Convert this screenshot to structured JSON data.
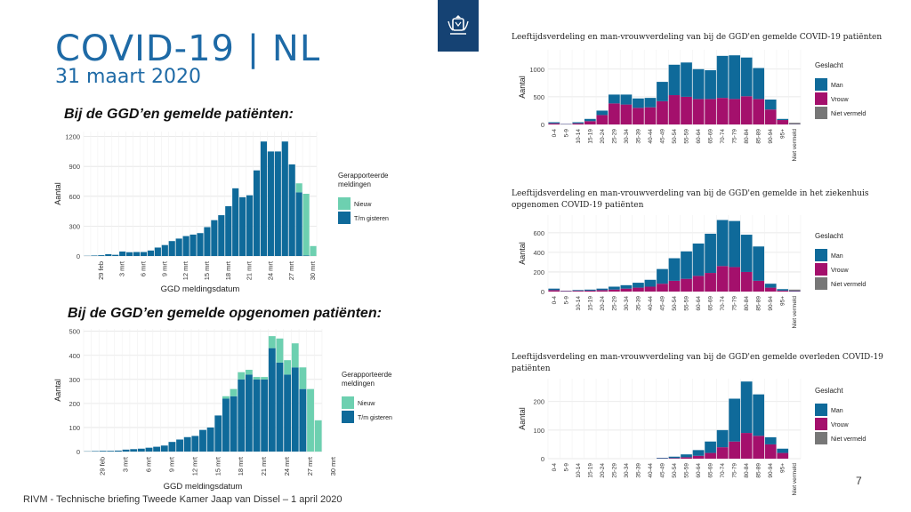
{
  "slide": {
    "title": "COVID-19 | NL",
    "date": "31 maart 2020",
    "section1": "Bij de GGD’en gemelde patiënten:",
    "section2": "Bij de GGD’en gemelde opgenomen patiënten:",
    "footer": "RIVM - Technische briefing Tweede Kamer Jaap van Dissel – 1 april 2020",
    "page_number": "7",
    "logo_icon": "coat-of-arms-icon"
  },
  "chart_data": [
    {
      "type": "bar",
      "stacked": true,
      "title": "",
      "xlabel": "GGD meldingsdatum",
      "ylabel": "Aantal",
      "ylim": [
        0,
        1250
      ],
      "yticks": [
        0,
        300,
        600,
        900,
        1200
      ],
      "x_tick_labels": [
        "29 feb",
        "3 mrt",
        "6 mrt",
        "9 mrt",
        "12 mrt",
        "15 mrt",
        "18 mrt",
        "21 mrt",
        "24 mrt",
        "27 mrt",
        "30 mrt"
      ],
      "x_tick_index": [
        3,
        6,
        9,
        12,
        15,
        18,
        21,
        24,
        27,
        30,
        33
      ],
      "legend_title": "Gerapporteerde meldingen",
      "legend_position": "right",
      "series": [
        {
          "name": "T/m gisteren",
          "color": "#0f6a9a",
          "values": [
            2,
            5,
            8,
            18,
            12,
            45,
            38,
            40,
            40,
            55,
            85,
            110,
            150,
            175,
            200,
            215,
            230,
            290,
            360,
            410,
            500,
            680,
            590,
            610,
            860,
            1150,
            1050,
            1050,
            1150,
            920,
            640,
            5,
            0
          ]
        },
        {
          "name": "Nieuw",
          "color": "#6dd0b0",
          "values": [
            0,
            0,
            0,
            0,
            0,
            0,
            0,
            0,
            0,
            0,
            0,
            0,
            0,
            0,
            0,
            0,
            0,
            0,
            0,
            0,
            0,
            0,
            0,
            0,
            0,
            0,
            0,
            0,
            0,
            0,
            90,
            620,
            100
          ]
        }
      ]
    },
    {
      "type": "bar",
      "stacked": true,
      "title": "",
      "xlabel": "GGD meldingsdatum",
      "ylabel": "Aantal",
      "ylim": [
        0,
        510
      ],
      "yticks": [
        0,
        100,
        200,
        300,
        400,
        500
      ],
      "x_tick_labels": [
        "29 feb",
        "3 mrt",
        "6 mrt",
        "9 mrt",
        "12 mrt",
        "15 mrt",
        "18 mrt",
        "21 mrt",
        "24 mrt",
        "27 mrt",
        "30 mrt"
      ],
      "x_tick_index": [
        3,
        6,
        9,
        12,
        15,
        18,
        21,
        24,
        27,
        30,
        33
      ],
      "legend_title": "Gerapporteerde meldingen",
      "legend_position": "right",
      "series": [
        {
          "name": "T/m gisteren",
          "color": "#0f6a9a",
          "values": [
            1,
            2,
            3,
            3,
            4,
            8,
            10,
            12,
            16,
            20,
            25,
            40,
            50,
            60,
            65,
            90,
            100,
            150,
            220,
            230,
            300,
            320,
            300,
            300,
            430,
            370,
            320,
            350,
            260,
            0,
            0
          ]
        },
        {
          "name": "Nieuw",
          "color": "#6dd0b0",
          "values": [
            0,
            0,
            0,
            0,
            0,
            0,
            0,
            0,
            0,
            0,
            0,
            0,
            0,
            0,
            0,
            0,
            0,
            0,
            10,
            30,
            30,
            20,
            10,
            10,
            50,
            100,
            60,
            100,
            90,
            260,
            130
          ]
        }
      ]
    },
    {
      "type": "bar",
      "stacked": true,
      "title": "Leeftijdsverdeling en man-vrouwverdeling van bij de GGD'en gemelde COVID-19 patiënten",
      "xlabel": "",
      "ylabel": "Aantal",
      "ylim": [
        0,
        1350
      ],
      "yticks": [
        0,
        500,
        1000
      ],
      "categories": [
        "0-4",
        "5-9",
        "10-14",
        "15-19",
        "20-24",
        "25-29",
        "30-34",
        "35-39",
        "40-44",
        "45-49",
        "50-54",
        "55-59",
        "60-64",
        "65-69",
        "70-74",
        "75-79",
        "80-84",
        "85-89",
        "90-94",
        "95+",
        "Niet vermeld"
      ],
      "legend_title": "Geslacht",
      "legend_position": "right",
      "series": [
        {
          "name": "Vrouw",
          "color": "#a4106c",
          "values": [
            20,
            5,
            20,
            60,
            170,
            380,
            360,
            300,
            310,
            420,
            530,
            500,
            460,
            460,
            480,
            460,
            510,
            460,
            270,
            80,
            5
          ]
        },
        {
          "name": "Man",
          "color": "#0f6a9a",
          "values": [
            20,
            5,
            20,
            40,
            80,
            160,
            180,
            170,
            170,
            350,
            550,
            620,
            540,
            520,
            760,
            790,
            700,
            560,
            180,
            20,
            5
          ]
        },
        {
          "name": "Niet vermeld",
          "color": "#777777",
          "values": [
            0,
            0,
            0,
            0,
            0,
            0,
            0,
            0,
            0,
            0,
            0,
            0,
            0,
            0,
            0,
            0,
            0,
            0,
            0,
            0,
            20
          ]
        }
      ]
    },
    {
      "type": "bar",
      "stacked": true,
      "title": "Leeftijdsverdeling en man-vrouwverdeling van bij de GGD'en gemelde in het ziekenhuis opgenomen COVID-19 patiënten",
      "xlabel": "",
      "ylabel": "Aantal",
      "ylim": [
        0,
        780
      ],
      "yticks": [
        0,
        200,
        400,
        600
      ],
      "categories": [
        "0-4",
        "5-9",
        "10-14",
        "15-19",
        "20-24",
        "25-29",
        "30-34",
        "35-39",
        "40-44",
        "45-49",
        "50-54",
        "55-59",
        "60-64",
        "65-69",
        "70-74",
        "75-79",
        "80-84",
        "85-89",
        "90-94",
        "95+",
        "Niet vermeld"
      ],
      "legend_title": "Geslacht",
      "legend_position": "right",
      "series": [
        {
          "name": "Vrouw",
          "color": "#a4106c",
          "values": [
            15,
            5,
            8,
            10,
            15,
            20,
            30,
            40,
            50,
            80,
            110,
            130,
            160,
            190,
            260,
            250,
            200,
            110,
            40,
            10,
            5
          ]
        },
        {
          "name": "Man",
          "color": "#0f6a9a",
          "values": [
            15,
            3,
            7,
            10,
            15,
            30,
            35,
            50,
            70,
            150,
            230,
            280,
            330,
            400,
            470,
            470,
            380,
            350,
            40,
            15,
            5
          ]
        },
        {
          "name": "Niet vermeld",
          "color": "#777777",
          "values": [
            0,
            0,
            0,
            0,
            0,
            0,
            0,
            0,
            0,
            0,
            0,
            0,
            0,
            0,
            0,
            0,
            0,
            0,
            0,
            0,
            10
          ]
        }
      ]
    },
    {
      "type": "bar",
      "stacked": true,
      "title": "Leeftijdsverdeling en man-vrouwverdeling van bij de GGD'en gemelde overleden COVID-19 patiënten",
      "xlabel": "",
      "ylabel": "Aantal",
      "ylim": [
        0,
        280
      ],
      "yticks": [
        0,
        100,
        200
      ],
      "categories": [
        "0-4",
        "5-9",
        "10-14",
        "15-19",
        "20-24",
        "25-29",
        "30-34",
        "35-39",
        "40-44",
        "45-49",
        "50-54",
        "55-59",
        "60-64",
        "65-69",
        "70-74",
        "75-79",
        "80-84",
        "85-89",
        "90-94",
        "95+",
        "Niet vermeld"
      ],
      "legend_title": "Geslacht",
      "legend_position": "right",
      "series": [
        {
          "name": "Vrouw",
          "color": "#a4106c",
          "values": [
            0,
            0,
            0,
            0,
            0,
            0,
            0,
            0,
            0,
            1,
            2,
            5,
            10,
            20,
            40,
            60,
            90,
            80,
            50,
            20,
            0
          ]
        },
        {
          "name": "Man",
          "color": "#0f6a9a",
          "values": [
            0,
            0,
            0,
            0,
            0,
            0,
            0,
            0,
            0,
            2,
            5,
            10,
            20,
            40,
            60,
            150,
            180,
            145,
            25,
            15,
            0
          ]
        },
        {
          "name": "Niet vermeld",
          "color": "#777777",
          "values": [
            0,
            0,
            0,
            0,
            0,
            0,
            0,
            0,
            0,
            0,
            0,
            0,
            0,
            0,
            0,
            0,
            0,
            0,
            0,
            0,
            0
          ]
        }
      ]
    }
  ]
}
